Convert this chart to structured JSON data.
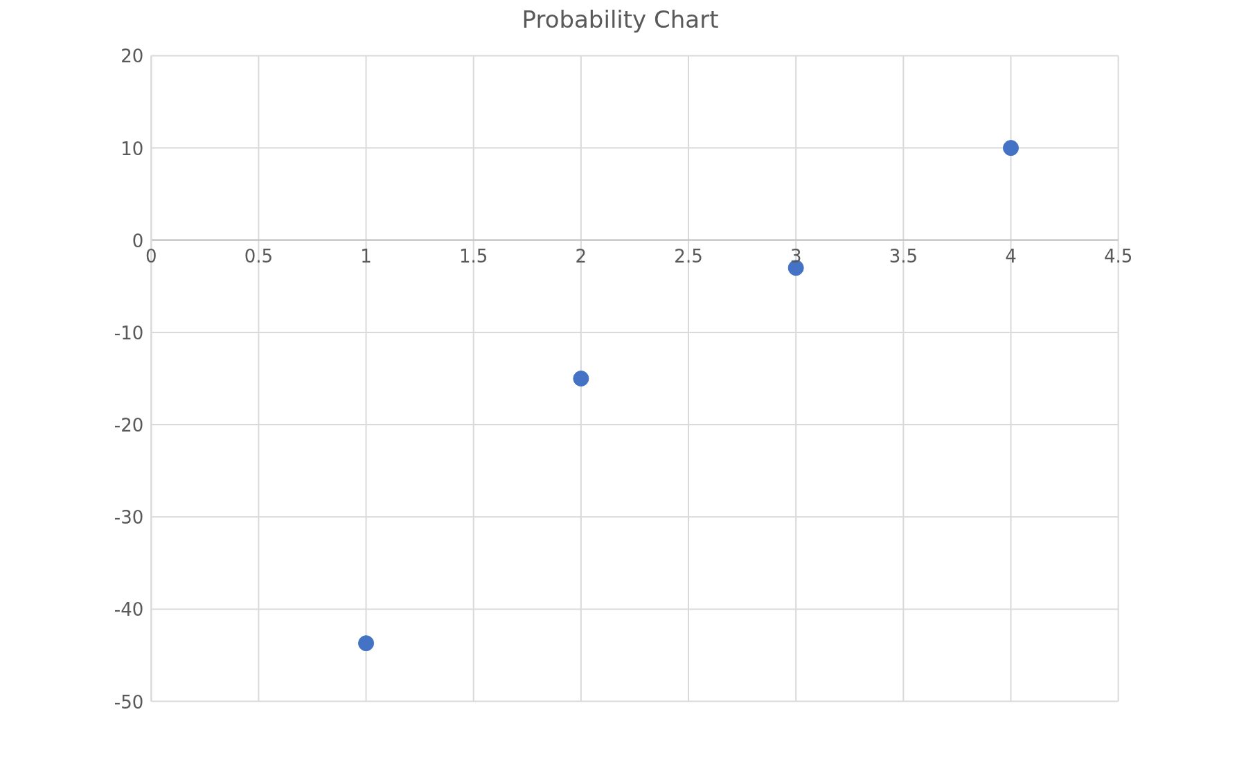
{
  "chart_data": {
    "type": "scatter",
    "title": "Probability Chart",
    "x": [
      1,
      2,
      3,
      4
    ],
    "series": [
      {
        "color": "#4472c4",
        "values": [
          -43.7,
          -15,
          -3,
          10
        ]
      }
    ],
    "xlim": [
      0,
      4.5
    ],
    "xticks": [
      0,
      0.5,
      1,
      1.5,
      2,
      2.5,
      3,
      3.5,
      4,
      4.5
    ],
    "ylim": [
      -50,
      20
    ],
    "yticks": [
      -50,
      -40,
      -30,
      -20,
      -10,
      0,
      10,
      20
    ],
    "grid": true,
    "marker": "circle"
  }
}
